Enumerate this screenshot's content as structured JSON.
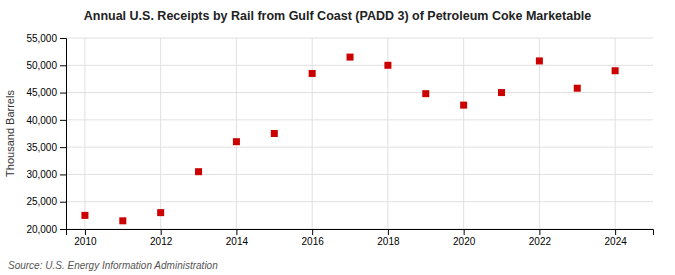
{
  "chart_data": {
    "type": "scatter",
    "title": "Annual U.S. Receipts by Rail from Gulf Coast (PADD 3) of Petroleum Coke Marketable",
    "ylabel": "Thousand Barrels",
    "annotations": [
      "Source: U.S. Energy Information Administration"
    ],
    "x": [
      2010,
      2011,
      2012,
      2013,
      2014,
      2015,
      2016,
      2017,
      2018,
      2019,
      2020,
      2021,
      2022,
      2023,
      2024
    ],
    "values": [
      22500,
      21500,
      23000,
      30500,
      36000,
      37500,
      48500,
      51500,
      50000,
      44800,
      42700,
      45000,
      50800,
      45800,
      49000
    ],
    "color": "#CC0000",
    "marker": "square",
    "xlim": [
      2009.5,
      2025.0
    ],
    "xticks": [
      2010,
      2012,
      2014,
      2016,
      2018,
      2020,
      2022,
      2024
    ],
    "ylim": [
      20000,
      55000
    ],
    "yticks": [
      {
        "value": 20000,
        "label": "20,000"
      },
      {
        "value": 25000,
        "label": "25,000"
      },
      {
        "value": 30000,
        "label": "30,000"
      },
      {
        "value": 35000,
        "label": "35,000"
      },
      {
        "value": 40000,
        "label": "40,000"
      },
      {
        "value": 45000,
        "label": "45,000"
      },
      {
        "value": 50000,
        "label": "50,000"
      },
      {
        "value": 55000,
        "label": "55,000"
      }
    ],
    "grid": true
  }
}
